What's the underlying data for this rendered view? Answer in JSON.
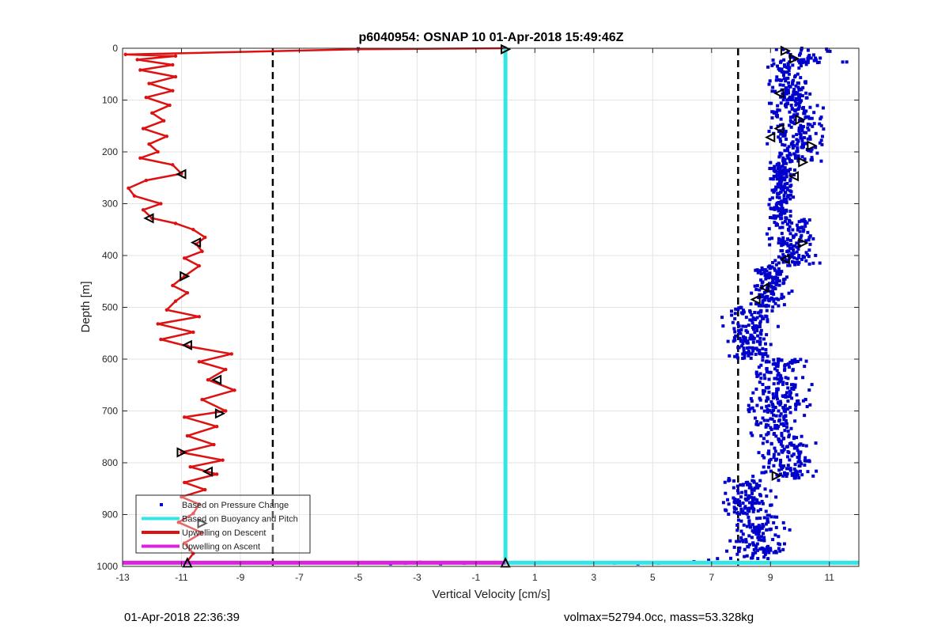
{
  "footer": {
    "left": "01-Apr-2018 22:36:39",
    "right": "volmax=52794.0cc, mass=53.328kg"
  },
  "chart_data": {
    "type": "scatter",
    "title": "p6040954: OSNAP 10 01-Apr-2018 15:49:46Z",
    "xlabel": "Vertical Velocity [cm/s]",
    "ylabel": "Depth [m]",
    "xlim": [
      -13,
      12
    ],
    "ylim": [
      0,
      1000
    ],
    "y_reversed": true,
    "grid": true,
    "xticks": [
      -13,
      -11,
      -9,
      -7,
      -5,
      -3,
      -1,
      1,
      3,
      5,
      7,
      9,
      11
    ],
    "yticks": [
      0,
      100,
      200,
      300,
      400,
      500,
      600,
      700,
      800,
      900,
      1000
    ],
    "legend_position": "bottom-left",
    "legend": [
      {
        "label": "Based on Pressure Change",
        "color": "#0000cc",
        "style": "dots"
      },
      {
        "label": "Based on Buoyancy and Pitch",
        "color": "#33e6e6",
        "style": "line"
      },
      {
        "label": "Upwelling on Descent",
        "color": "#dd1111",
        "style": "line"
      },
      {
        "label": "Upwelling on Ascent",
        "color": "#dd22dd",
        "style": "line"
      }
    ],
    "reference_lines": [
      {
        "x": -7.9,
        "style": "dashed",
        "color": "#000000"
      },
      {
        "x": 7.9,
        "style": "dashed",
        "color": "#000000"
      }
    ],
    "series": [
      {
        "legend_index": 2,
        "color": "#dd1111",
        "points": [
          [
            0,
            0
          ],
          [
            -5,
            2
          ],
          [
            -12.9,
            12
          ],
          [
            -11.2,
            15
          ],
          [
            -12.5,
            22
          ],
          [
            -11.3,
            32
          ],
          [
            -12.4,
            42
          ],
          [
            -11.2,
            55
          ],
          [
            -12.1,
            68
          ],
          [
            -11.3,
            82
          ],
          [
            -12.2,
            95
          ],
          [
            -11.4,
            110
          ],
          [
            -12.0,
            125
          ],
          [
            -11.6,
            140
          ],
          [
            -12.3,
            155
          ],
          [
            -11.5,
            170
          ],
          [
            -12.1,
            185
          ],
          [
            -11.8,
            200
          ],
          [
            -12.4,
            212
          ],
          [
            -11.3,
            225
          ],
          [
            -11.0,
            242
          ],
          [
            -12.2,
            255
          ],
          [
            -12.8,
            270
          ],
          [
            -12.6,
            285
          ],
          [
            -11.7,
            300
          ],
          [
            -12.3,
            312
          ],
          [
            -12.0,
            328
          ],
          [
            -11.2,
            338
          ],
          [
            -10.6,
            350
          ],
          [
            -10.2,
            365
          ],
          [
            -10.5,
            378
          ],
          [
            -10.3,
            392
          ],
          [
            -10.9,
            405
          ],
          [
            -10.4,
            420
          ],
          [
            -10.9,
            440
          ],
          [
            -11.3,
            458
          ],
          [
            -10.8,
            472
          ],
          [
            -11.2,
            488
          ],
          [
            -11.5,
            505
          ],
          [
            -10.4,
            518
          ],
          [
            -11.8,
            532
          ],
          [
            -10.6,
            548
          ],
          [
            -11.7,
            562
          ],
          [
            -10.8,
            575
          ],
          [
            -9.3,
            590
          ],
          [
            -10.4,
            605
          ],
          [
            -9.5,
            620
          ],
          [
            -10.1,
            640
          ],
          [
            -9.2,
            660
          ],
          [
            -10.3,
            678
          ],
          [
            -9.5,
            700
          ],
          [
            -10.9,
            712
          ],
          [
            -9.8,
            730
          ],
          [
            -10.8,
            748
          ],
          [
            -9.9,
            765
          ],
          [
            -11.0,
            780
          ],
          [
            -9.6,
            795
          ],
          [
            -10.7,
            808
          ],
          [
            -9.8,
            822
          ],
          [
            -10.9,
            838
          ],
          [
            -10.2,
            852
          ],
          [
            -11.0,
            866
          ],
          [
            -10.4,
            880
          ],
          [
            -10.6,
            898
          ],
          [
            -11.1,
            915
          ],
          [
            -10.3,
            935
          ],
          [
            -10.9,
            955
          ],
          [
            -10.6,
            975
          ],
          [
            -10.8,
            990
          ]
        ]
      },
      {
        "legend_index": 1,
        "color": "#33e6e6",
        "points": [
          [
            0,
            0
          ],
          [
            0,
            993
          ],
          [
            12,
            993
          ]
        ]
      },
      {
        "legend_index": 3,
        "color": "#dd22dd",
        "points": [
          [
            -13,
            993
          ],
          [
            0,
            993
          ]
        ]
      }
    ],
    "scatter_bands": [
      {
        "depth": [
          0,
          30
        ],
        "x": [
          8.5,
          11.8
        ]
      },
      {
        "depth": [
          30,
          110
        ],
        "x": [
          8.8,
          10.5
        ]
      },
      {
        "depth": [
          110,
          220
        ],
        "x": [
          8.7,
          11.0
        ]
      },
      {
        "depth": [
          220,
          330
        ],
        "x": [
          8.8,
          9.9
        ]
      },
      {
        "depth": [
          330,
          420
        ],
        "x": [
          8.6,
          10.9
        ]
      },
      {
        "depth": [
          420,
          500
        ],
        "x": [
          8.2,
          9.8
        ]
      },
      {
        "depth": [
          500,
          600
        ],
        "x": [
          7.2,
          9.4
        ]
      },
      {
        "depth": [
          600,
          760
        ],
        "x": [
          7.9,
          10.6
        ]
      },
      {
        "depth": [
          760,
          830
        ],
        "x": [
          8.3,
          10.8
        ]
      },
      {
        "depth": [
          830,
          900
        ],
        "x": [
          7.0,
          9.5
        ]
      },
      {
        "depth": [
          900,
          985
        ],
        "x": [
          7.3,
          10.0
        ]
      }
    ],
    "scatter_extra": [
      [
        -5,
        1
      ],
      [
        -4.3,
        993
      ],
      [
        -3.9,
        995
      ],
      [
        -3.4,
        994
      ],
      [
        -2.9,
        992
      ],
      [
        -2.2,
        995
      ],
      [
        -1.8,
        993
      ],
      [
        -1.4,
        994
      ],
      [
        1.0,
        994
      ],
      [
        3.7,
        994
      ],
      [
        4.1,
        993
      ],
      [
        4.5,
        995
      ],
      [
        5.2,
        994
      ],
      [
        5.8,
        993
      ],
      [
        6.4,
        991
      ],
      [
        6.9,
        988
      ],
      [
        7.2,
        985
      ]
    ],
    "markers": [
      {
        "x": 0,
        "y": 2,
        "shape": "right"
      },
      {
        "x": -11.0,
        "y": 243,
        "shape": "left"
      },
      {
        "x": -12.1,
        "y": 328,
        "shape": "left"
      },
      {
        "x": -10.5,
        "y": 375,
        "shape": "left"
      },
      {
        "x": -10.9,
        "y": 440,
        "shape": "right"
      },
      {
        "x": -10.8,
        "y": 573,
        "shape": "left"
      },
      {
        "x": -9.8,
        "y": 640,
        "shape": "left"
      },
      {
        "x": -9.7,
        "y": 705,
        "shape": "right"
      },
      {
        "x": -11.0,
        "y": 780,
        "shape": "right"
      },
      {
        "x": -10.1,
        "y": 817,
        "shape": "left"
      },
      {
        "x": -10.3,
        "y": 917,
        "shape": "right"
      },
      {
        "x": -10.8,
        "y": 993,
        "shape": "up"
      },
      {
        "x": 0,
        "y": 993,
        "shape": "up"
      },
      {
        "x": 9.5,
        "y": 5,
        "shape": "right"
      },
      {
        "x": 9.8,
        "y": 20,
        "shape": "right"
      },
      {
        "x": 9.3,
        "y": 87,
        "shape": "left"
      },
      {
        "x": 10.0,
        "y": 138,
        "shape": "right"
      },
      {
        "x": 9.3,
        "y": 155,
        "shape": "left"
      },
      {
        "x": 9.0,
        "y": 172,
        "shape": "left"
      },
      {
        "x": 10.4,
        "y": 188,
        "shape": "right"
      },
      {
        "x": 10.1,
        "y": 220,
        "shape": "right"
      },
      {
        "x": 9.8,
        "y": 247,
        "shape": "left"
      },
      {
        "x": 10.1,
        "y": 376,
        "shape": "right"
      },
      {
        "x": 9.5,
        "y": 407,
        "shape": "left"
      },
      {
        "x": 8.8,
        "y": 462,
        "shape": "left"
      },
      {
        "x": 8.5,
        "y": 485,
        "shape": "left"
      },
      {
        "x": 9.2,
        "y": 825,
        "shape": "right"
      }
    ]
  }
}
